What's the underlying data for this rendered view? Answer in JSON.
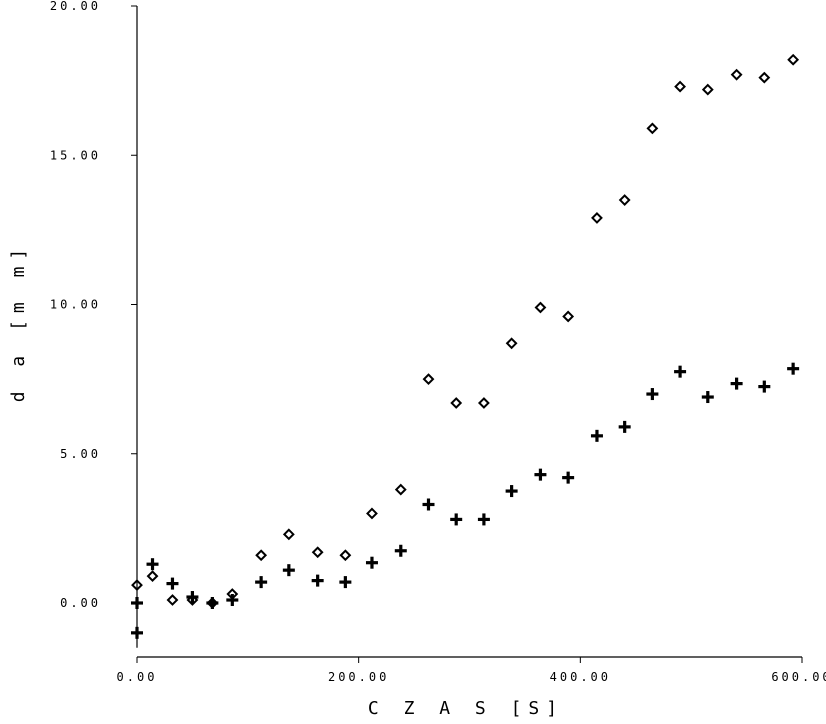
{
  "chart_data": {
    "type": "scatter",
    "title": "",
    "xlabel": "C Z A S   [S]",
    "ylabel": "d a   [m m]",
    "xlim": [
      0,
      600
    ],
    "ylim": [
      -1.5,
      20
    ],
    "grid": false,
    "x_ticks": [
      0,
      200,
      400,
      600
    ],
    "x_tick_labels": [
      "0.00",
      "200.00",
      "400.00",
      "600.00"
    ],
    "y_ticks": [
      0,
      5,
      10,
      15,
      20
    ],
    "y_tick_labels": [
      "0.00",
      "5.00",
      "10.00",
      "15.00",
      "20.00"
    ],
    "series": [
      {
        "marker": "diamond",
        "points": [
          [
            0,
            0.6
          ],
          [
            14,
            0.9
          ],
          [
            32,
            0.1
          ],
          [
            50,
            0.1
          ],
          [
            68,
            0.0
          ],
          [
            86,
            0.3
          ],
          [
            112,
            1.6
          ],
          [
            137,
            2.3
          ],
          [
            163,
            1.7
          ],
          [
            188,
            1.6
          ],
          [
            212,
            3.0
          ],
          [
            238,
            3.8
          ],
          [
            263,
            7.5
          ],
          [
            288,
            6.7
          ],
          [
            313,
            6.7
          ],
          [
            338,
            8.7
          ],
          [
            364,
            9.9
          ],
          [
            389,
            9.6
          ],
          [
            415,
            12.9
          ],
          [
            440,
            13.5
          ],
          [
            465,
            15.9
          ],
          [
            490,
            17.3
          ],
          [
            515,
            17.2
          ],
          [
            541,
            17.7
          ],
          [
            566,
            17.6
          ],
          [
            592,
            18.2
          ]
        ]
      },
      {
        "marker": "plus",
        "points": [
          [
            0,
            -1.0
          ],
          [
            0,
            0.0
          ],
          [
            14,
            1.3
          ],
          [
            32,
            0.65
          ],
          [
            50,
            0.2
          ],
          [
            68,
            0.0
          ],
          [
            86,
            0.1
          ],
          [
            112,
            0.7
          ],
          [
            137,
            1.1
          ],
          [
            163,
            0.75
          ],
          [
            188,
            0.7
          ],
          [
            212,
            1.35
          ],
          [
            238,
            1.75
          ],
          [
            263,
            3.3
          ],
          [
            288,
            2.8
          ],
          [
            313,
            2.8
          ],
          [
            338,
            3.75
          ],
          [
            364,
            4.3
          ],
          [
            389,
            4.2
          ],
          [
            415,
            5.6
          ],
          [
            440,
            5.9
          ],
          [
            465,
            7.0
          ],
          [
            490,
            7.75
          ],
          [
            515,
            6.9
          ],
          [
            541,
            7.35
          ],
          [
            566,
            7.25
          ],
          [
            592,
            7.85
          ]
        ]
      }
    ]
  }
}
